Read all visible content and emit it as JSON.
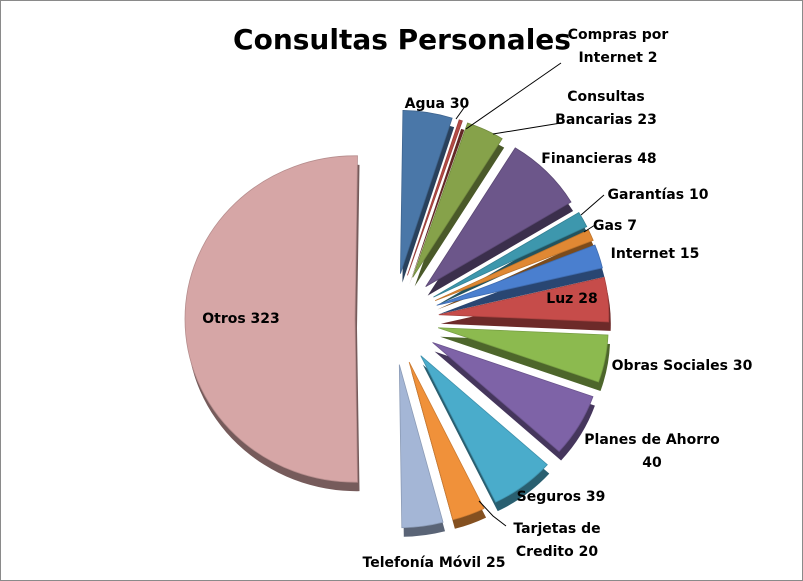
{
  "chart_data": {
    "type": "pie",
    "title": "Consultas Personales",
    "slices": [
      {
        "label": "Agua",
        "value": 30,
        "color": "#4a77a8",
        "label_lines": [
          "Agua 30"
        ]
      },
      {
        "label": "Compras por Internet",
        "value": 2,
        "color": "#b44a45",
        "label_lines": [
          "Compras por",
          "Internet 2"
        ]
      },
      {
        "label": "Consultas Bancarias",
        "value": 23,
        "color": "#86a24a",
        "label_lines": [
          "Consultas",
          "Bancarias 23"
        ]
      },
      {
        "label": "Financieras",
        "value": 48,
        "color": "#6c568a",
        "label_lines": [
          "Financieras 48"
        ]
      },
      {
        "label": "Garantías",
        "value": 10,
        "color": "#3d97ad",
        "label_lines": [
          "Garantías 10"
        ]
      },
      {
        "label": "Gas",
        "value": 7,
        "color": "#e08833",
        "label_lines": [
          "Gas 7"
        ]
      },
      {
        "label": "Internet",
        "value": 15,
        "color": "#4a7fcf",
        "label_lines": [
          "Internet 15"
        ]
      },
      {
        "label": "Luz",
        "value": 28,
        "color": "#c64c4a",
        "label_lines": [
          "Luz 28"
        ]
      },
      {
        "label": "Obras Sociales",
        "value": 30,
        "color": "#8cba4f",
        "label_lines": [
          "Obras Sociales 30"
        ]
      },
      {
        "label": "Planes de Ahorro",
        "value": 40,
        "color": "#7e63a7",
        "label_lines": [
          "Planes de Ahorro",
          "40"
        ]
      },
      {
        "label": "Seguros",
        "value": 39,
        "color": "#4aaccb",
        "label_lines": [
          "Seguros 39"
        ]
      },
      {
        "label": "Tarjetas de Credito",
        "value": 20,
        "color": "#f0913a",
        "label_lines": [
          "Tarjetas de",
          "Credito  20"
        ]
      },
      {
        "label": "Telefonía Móvil",
        "value": 25,
        "color": "#a4b6d6",
        "label_lines": [
          "Telefonía Móvil 25"
        ]
      },
      {
        "label": "Otros",
        "value": 323,
        "color": "#d6a6a6",
        "label_lines": [
          "Otros 323"
        ]
      }
    ]
  }
}
